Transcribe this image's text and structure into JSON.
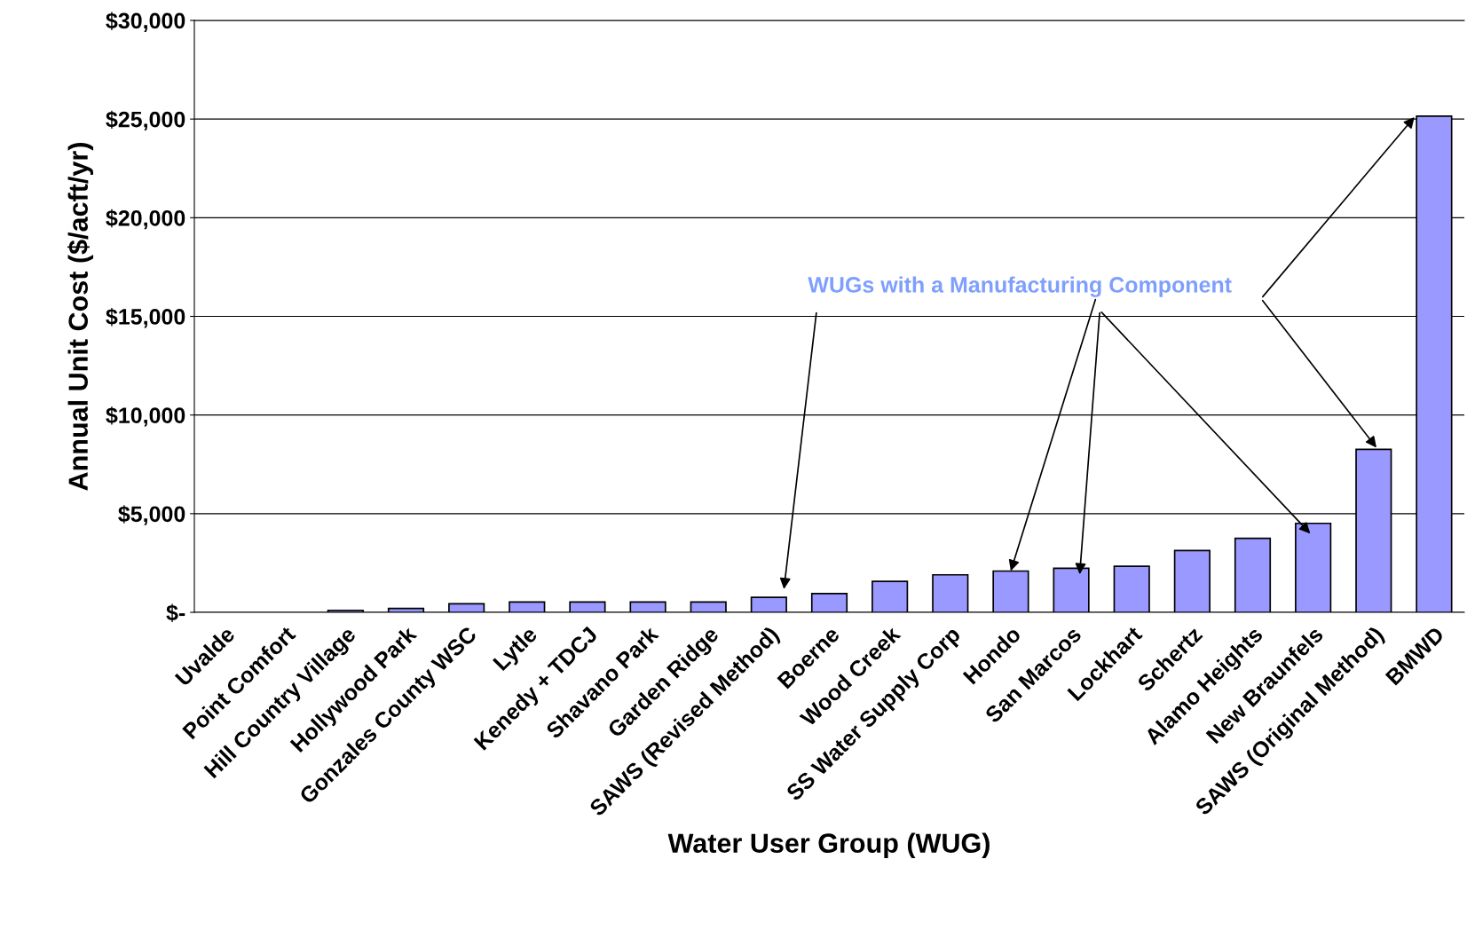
{
  "chart_data": {
    "type": "bar",
    "xlabel": "Water User Group (WUG)",
    "ylabel": "Annual Unit Cost ($/acft/yr)",
    "categories": [
      "Uvalde",
      "Point Comfort",
      "Hill Country Village",
      "Hollywood Park",
      "Gonzales County WSC",
      "Lytle",
      "Kenedy + TDCJ",
      "Shavano Park",
      "Garden Ridge",
      "SAWS (Revised Method)",
      "Boerne",
      "Wood Creek",
      "SS Water Supply Corp",
      "Hondo",
      "San Marcos",
      "Lockhart",
      "Schertz",
      "Alamo Heights",
      "New Braunfels",
      "SAWS (Original Method)",
      "BMWD"
    ],
    "values": [
      0,
      0,
      100,
      200,
      430,
      520,
      520,
      520,
      520,
      760,
      950,
      1570,
      1900,
      2090,
      2230,
      2330,
      3130,
      3750,
      4510,
      8260,
      25150
    ],
    "color": "#9999ff",
    "ylim": [
      0,
      30000
    ],
    "yticks": [
      {
        "value": 0,
        "label": "$-"
      },
      {
        "value": 5000,
        "label": "$5,000"
      },
      {
        "value": 10000,
        "label": "$10,000"
      },
      {
        "value": 15000,
        "label": "$15,000"
      },
      {
        "value": 20000,
        "label": "$20,000"
      },
      {
        "value": 25000,
        "label": "$25,000"
      },
      {
        "value": 30000,
        "label": "$30,000"
      }
    ],
    "grid": "y",
    "annotations": [
      {
        "text": "WUGs with a Manufacturing Component",
        "x": "Hondo",
        "y": 2090
      }
    ]
  }
}
